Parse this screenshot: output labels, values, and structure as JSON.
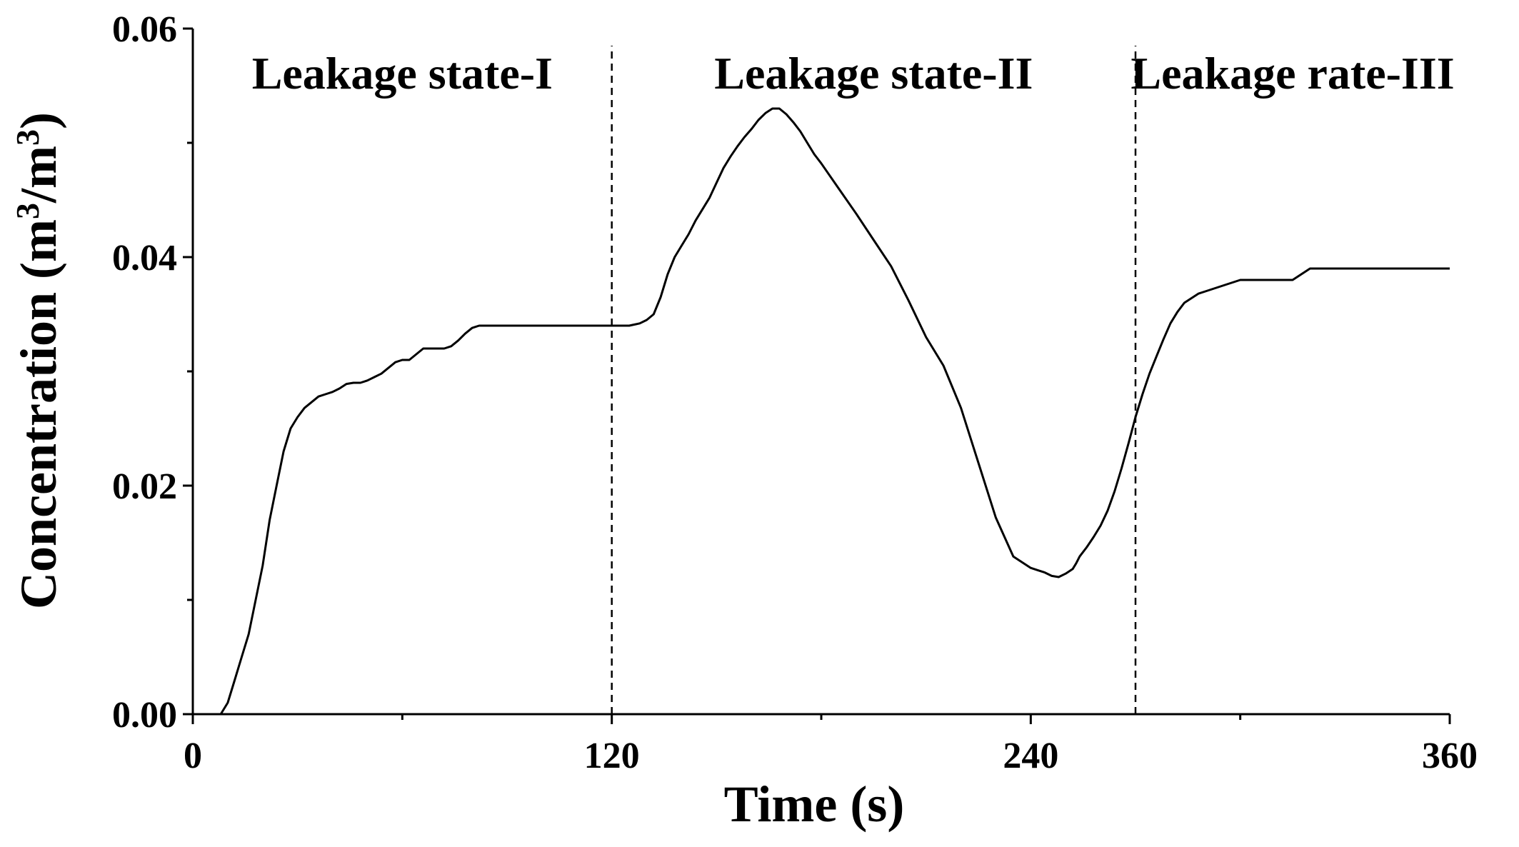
{
  "chart_data": {
    "type": "line",
    "xlabel": "Time (s)",
    "ylabel": {
      "prefix": "Concentration (m",
      "sup1": "3",
      "mid": "/m",
      "sup2": "3",
      "suffix": ")"
    },
    "xlim": [
      0,
      360
    ],
    "ylim": [
      0,
      0.06
    ],
    "x_ticks": [
      {
        "value": 0,
        "label": "0"
      },
      {
        "value": 120,
        "label": "120"
      },
      {
        "value": 240,
        "label": "240"
      },
      {
        "value": 360,
        "label": "360"
      }
    ],
    "x_minor_ticks": [
      60,
      180,
      300
    ],
    "y_ticks": [
      {
        "value": 0,
        "label": "0.00"
      },
      {
        "value": 0.02,
        "label": "0.02"
      },
      {
        "value": 0.04,
        "label": "0.04"
      },
      {
        "value": 0.06,
        "label": "0.06"
      }
    ],
    "y_minor_ticks": [
      0.01,
      0.03,
      0.05
    ],
    "grid": false,
    "line_color": "#000000",
    "dividers": [
      120,
      270
    ],
    "regions": [
      {
        "label": "Leakage state-I",
        "x": 60
      },
      {
        "label": "Leakage state-II",
        "x": 195
      },
      {
        "label": "Leakage rate-III",
        "x": 315
      }
    ],
    "series": [
      {
        "x": [
          8,
          10,
          12,
          14,
          16,
          18,
          20,
          22,
          24,
          26,
          28,
          30,
          32,
          34,
          36,
          38,
          40,
          42,
          44,
          46,
          48,
          50,
          52,
          54,
          56,
          58,
          60,
          62,
          64,
          66,
          68,
          70,
          72,
          74,
          76,
          78,
          80,
          82,
          84,
          86,
          88,
          90,
          95,
          100,
          105,
          110,
          115,
          120,
          125,
          128,
          130,
          132,
          134,
          136,
          138,
          140,
          142,
          144,
          146,
          148,
          150,
          152,
          154,
          156,
          158,
          160,
          162,
          164,
          166,
          168,
          170,
          172,
          174,
          176,
          178,
          180,
          185,
          190,
          195,
          200,
          205,
          210,
          215,
          220,
          225,
          230,
          235,
          240,
          242,
          244,
          246,
          248,
          250,
          252,
          253,
          254,
          256,
          258,
          260,
          262,
          264,
          266,
          268,
          270,
          272,
          274,
          276,
          278,
          280,
          282,
          284,
          286,
          288,
          290,
          295,
          300,
          305,
          310,
          315,
          320,
          325,
          330,
          335,
          340,
          345,
          350,
          355,
          360
        ],
        "values": [
          0.0,
          0.001,
          0.003,
          0.005,
          0.007,
          0.01,
          0.013,
          0.017,
          0.02,
          0.023,
          0.025,
          0.026,
          0.0268,
          0.0273,
          0.0278,
          0.028,
          0.0282,
          0.0285,
          0.0289,
          0.029,
          0.029,
          0.0292,
          0.0295,
          0.0298,
          0.0303,
          0.0308,
          0.031,
          0.031,
          0.0315,
          0.032,
          0.032,
          0.032,
          0.032,
          0.0322,
          0.0327,
          0.0333,
          0.0338,
          0.034,
          0.034,
          0.034,
          0.034,
          0.034,
          0.034,
          0.034,
          0.034,
          0.034,
          0.034,
          0.034,
          0.034,
          0.0342,
          0.0345,
          0.035,
          0.0365,
          0.0385,
          0.04,
          0.041,
          0.042,
          0.0432,
          0.0442,
          0.0452,
          0.0465,
          0.0478,
          0.0488,
          0.0497,
          0.0505,
          0.0512,
          0.052,
          0.0526,
          0.053,
          0.053,
          0.0525,
          0.0518,
          0.051,
          0.05,
          0.049,
          0.0482,
          0.046,
          0.0438,
          0.0415,
          0.0392,
          0.0362,
          0.033,
          0.0305,
          0.0268,
          0.022,
          0.0172,
          0.0138,
          0.0128,
          0.0126,
          0.0124,
          0.0121,
          0.012,
          0.0123,
          0.0127,
          0.0132,
          0.0138,
          0.0146,
          0.0155,
          0.0165,
          0.0178,
          0.0195,
          0.0215,
          0.0237,
          0.026,
          0.028,
          0.0298,
          0.0313,
          0.0328,
          0.0342,
          0.0352,
          0.036,
          0.0364,
          0.0368,
          0.037,
          0.0375,
          0.038,
          0.038,
          0.038,
          0.038,
          0.039,
          0.039,
          0.039,
          0.039,
          0.039,
          0.039,
          0.039,
          0.039,
          0.039
        ]
      }
    ]
  }
}
